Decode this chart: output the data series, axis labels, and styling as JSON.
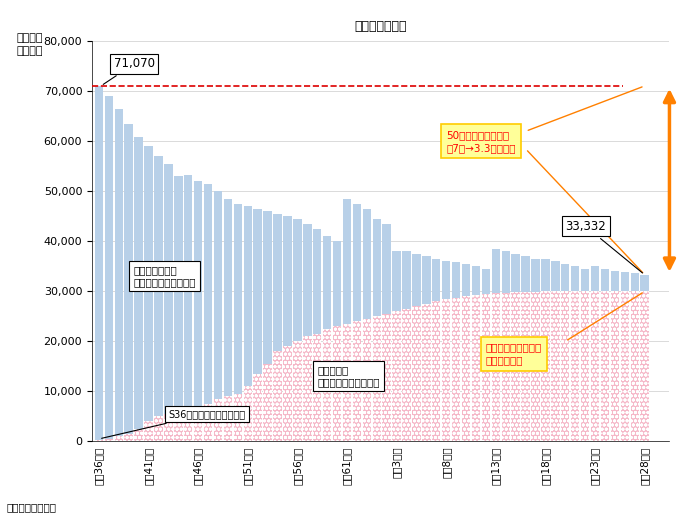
{
  "title": "［踏切の状況］",
  "ylabel": "踏切道数\n（か所）",
  "source": "資料）国土交通省",
  "categories_xtick": [
    "昭和36年度",
    "昭和41年度",
    "昭和46年度",
    "昭和51年度",
    "昭和56年度",
    "昭和61年度",
    "平挐3年度",
    "平挐8年度",
    "平成13年度",
    "平成18年度",
    "平成23年度",
    "平成28年度"
  ],
  "total_values": [
    71070,
    69000,
    66500,
    63500,
    60800,
    59000,
    57000,
    55500,
    53000,
    53200,
    52000,
    51500,
    50000,
    48500,
    47500,
    47000,
    46500,
    46000,
    45500,
    45000,
    44500,
    43500,
    42500,
    41000,
    40000,
    48500,
    47500,
    46500,
    44500,
    43500,
    38000,
    38000,
    37500,
    37000,
    36500,
    36000,
    35800,
    35500,
    35000,
    34500,
    38500,
    38000,
    37500,
    37000,
    36500,
    36500,
    36000,
    35500,
    35000,
    34500,
    35000,
    34500,
    34000,
    33800,
    33600,
    33332
  ],
  "type1_values": [
    200,
    500,
    1000,
    1500,
    2500,
    4000,
    5000,
    5500,
    5800,
    6000,
    6500,
    7500,
    8500,
    9000,
    9500,
    11000,
    13500,
    15500,
    18000,
    19000,
    20000,
    21000,
    21500,
    22500,
    23000,
    23500,
    24000,
    24500,
    25000,
    25500,
    26000,
    26500,
    27000,
    27500,
    28000,
    28500,
    28700,
    29000,
    29200,
    29400,
    29600,
    29700,
    29800,
    29900,
    29900,
    30000,
    30000,
    30000,
    30000,
    30000,
    30000,
    30000,
    30000,
    30000,
    30000,
    30000
  ],
  "xtick_positions": [
    0,
    5,
    10,
    15,
    20,
    25,
    30,
    35,
    40,
    45,
    50,
    55
  ],
  "ylim": [
    0,
    80000
  ],
  "yticks": [
    0,
    10000,
    20000,
    30000,
    40000,
    50000,
    60000,
    70000,
    80000
  ],
  "dashed_line_y": 71070,
  "annotation_71070": "71,070",
  "annotation_33332": "33,332",
  "s36_label": "S36　踏切改良促進法施行",
  "label_type34": "第３，４種踏切\n（遷断機のない踏切）",
  "label_type1": "第１種踏切\n（遷断機のある踏切）",
  "label_halved": "50年で踏切数は半減\n（7万→3.3万箇所）",
  "label_10pct": "遷断機の無い踏切は\n踏切道の１割",
  "color_type34": "#b8d0e8",
  "color_type1_fill": "#f5b8c8",
  "color_dashed": "#dd0000",
  "color_arrow_orange": "#ff8000",
  "color_label_halved_bg": "#ffff99",
  "color_label_halved_border": "#ffcc00",
  "background_color": "#ffffff"
}
